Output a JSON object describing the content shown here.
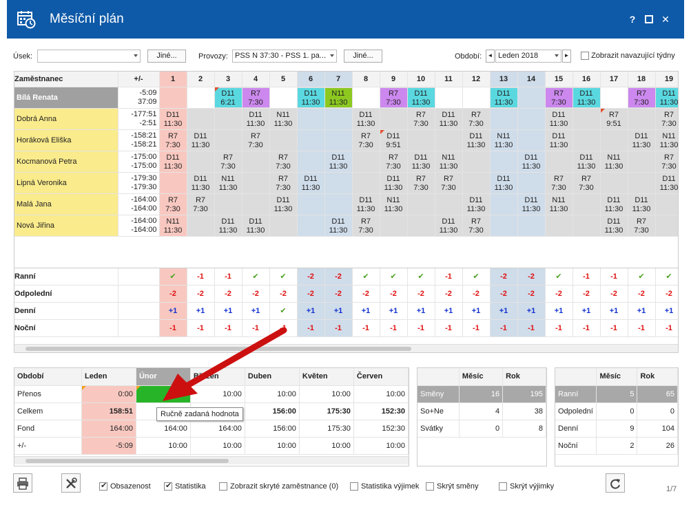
{
  "window": {
    "title": "Měsíční plán",
    "help": "?",
    "maximize": "□",
    "close": "✕",
    "icon": "calendar-clock-icon"
  },
  "filters": {
    "usek_label": "Úsek:",
    "usek_value": "",
    "jine1": "Jiné...",
    "provozy_label": "Provozy:",
    "provozy_value": "PSS N 37:30 - PSS 1. pa...",
    "jine2": "Jiné...",
    "obdobi_label": "Období:",
    "obdobi_value": "Leden 2018",
    "prev": "◄",
    "next": "►",
    "show_weeks": "Zobrazit navazující týdny"
  },
  "grid": {
    "col_name": "Zaměstnanec",
    "col_balance": "+/-",
    "days": [
      "1",
      "2",
      "3",
      "4",
      "5",
      "6",
      "7",
      "8",
      "9",
      "10",
      "11",
      "12",
      "13",
      "14",
      "15",
      "16",
      "17",
      "18",
      "19"
    ],
    "weekend_days": [
      6,
      7,
      13,
      14
    ],
    "today_day": 1,
    "employees": [
      {
        "name": "Bílá Renata",
        "bal1": "-5:09",
        "bal2": "37:09",
        "selected": true,
        "cells": [
          [
            "",
            ""
          ],
          [
            "",
            ""
          ],
          [
            "D11",
            "6:21"
          ],
          [
            "R7",
            "7:30"
          ],
          [
            "",
            ""
          ],
          [
            "D11",
            "11:30"
          ],
          [
            "N11",
            "11:30"
          ],
          [
            "",
            ""
          ],
          [
            "R7",
            "7:30"
          ],
          [
            "D11",
            "11:30"
          ],
          [
            "",
            ""
          ],
          [
            "",
            ""
          ],
          [
            "D11",
            "11:30"
          ],
          [
            "",
            ""
          ],
          [
            "R7",
            "7:30"
          ],
          [
            "D11",
            "11:30"
          ],
          [
            "",
            ""
          ],
          [
            "R7",
            "7:30"
          ],
          [
            "D11",
            "11:30"
          ]
        ],
        "flags": [
          3
        ]
      },
      {
        "name": "Dobrá Anna",
        "bal1": "-177:51",
        "bal2": "-2:51",
        "cells": [
          [
            "D11",
            "11:30"
          ],
          [
            "",
            ""
          ],
          [
            "",
            ""
          ],
          [
            "D11",
            "11:30"
          ],
          [
            "N11",
            "11:30"
          ],
          [
            "",
            ""
          ],
          [
            "",
            ""
          ],
          [
            "D11",
            "11:30"
          ],
          [
            "",
            ""
          ],
          [
            "R7",
            "7:30"
          ],
          [
            "D11",
            "11:30"
          ],
          [
            "R7",
            "7:30"
          ],
          [
            "",
            ""
          ],
          [
            "",
            ""
          ],
          [
            "D11",
            "11:30"
          ],
          [
            "",
            ""
          ],
          [
            "R7",
            "9:51"
          ],
          [
            "",
            ""
          ],
          [
            "R7",
            "7:30"
          ]
        ],
        "flags": [
          17
        ]
      },
      {
        "name": "Horáková Eliška",
        "bal1": "-158:21",
        "bal2": "-158:21",
        "cells": [
          [
            "R7",
            "7:30"
          ],
          [
            "D11",
            "11:30"
          ],
          [
            "",
            ""
          ],
          [
            "R7",
            "7:30"
          ],
          [
            "",
            ""
          ],
          [
            "",
            ""
          ],
          [
            "",
            ""
          ],
          [
            "R7",
            "7:30"
          ],
          [
            "D11",
            "9:51"
          ],
          [
            "",
            ""
          ],
          [
            "",
            ""
          ],
          [
            "D11",
            "11:30"
          ],
          [
            "N11",
            "11:30"
          ],
          [
            "",
            ""
          ],
          [
            "D11",
            "11:30"
          ],
          [
            "",
            ""
          ],
          [
            "",
            ""
          ],
          [
            "D11",
            "11:30"
          ],
          [
            "N11",
            "11:30"
          ]
        ],
        "flags": [
          9
        ]
      },
      {
        "name": "Kocmanová Petra",
        "bal1": "-175:00",
        "bal2": "-175:00",
        "cells": [
          [
            "D11",
            "11:30"
          ],
          [
            "",
            ""
          ],
          [
            "R7",
            "7:30"
          ],
          [
            "",
            ""
          ],
          [
            "R7",
            "7:30"
          ],
          [
            "",
            ""
          ],
          [
            "D11",
            "11:30"
          ],
          [
            "",
            ""
          ],
          [
            "R7",
            "7:30"
          ],
          [
            "D11",
            "11:30"
          ],
          [
            "N11",
            "11:30"
          ],
          [
            "",
            ""
          ],
          [
            "",
            ""
          ],
          [
            "D11",
            "11:30"
          ],
          [
            "",
            ""
          ],
          [
            "D11",
            "11:30"
          ],
          [
            "N11",
            "11:30"
          ],
          [
            "",
            ""
          ],
          [
            "R7",
            "7:30"
          ]
        ],
        "flags": []
      },
      {
        "name": "Lipná Veronika",
        "bal1": "-179:30",
        "bal2": "-179:30",
        "cells": [
          [
            "",
            ""
          ],
          [
            "D11",
            "11:30"
          ],
          [
            "N11",
            "11:30"
          ],
          [
            "",
            ""
          ],
          [
            "R7",
            "7:30"
          ],
          [
            "D11",
            "11:30"
          ],
          [
            "",
            ""
          ],
          [
            "",
            ""
          ],
          [
            "D11",
            "11:30"
          ],
          [
            "R7",
            "7:30"
          ],
          [
            "R7",
            "7:30"
          ],
          [
            "",
            ""
          ],
          [
            "D11",
            "11:30"
          ],
          [
            "",
            ""
          ],
          [
            "R7",
            "7:30"
          ],
          [
            "R7",
            "7:30"
          ],
          [
            "",
            ""
          ],
          [
            "",
            ""
          ],
          [
            "D11",
            "11:30"
          ]
        ],
        "flags": []
      },
      {
        "name": "Malá Jana",
        "bal1": "-164:00",
        "bal2": "-164:00",
        "cells": [
          [
            "R7",
            "7:30"
          ],
          [
            "R7",
            "7:30"
          ],
          [
            "",
            ""
          ],
          [
            "",
            ""
          ],
          [
            "D11",
            "11:30"
          ],
          [
            "",
            ""
          ],
          [
            "",
            ""
          ],
          [
            "D11",
            "11:30"
          ],
          [
            "N11",
            "11:30"
          ],
          [
            "",
            ""
          ],
          [
            "",
            ""
          ],
          [
            "D11",
            "11:30"
          ],
          [
            "",
            ""
          ],
          [
            "D11",
            "11:30"
          ],
          [
            "N11",
            "11:30"
          ],
          [
            "",
            ""
          ],
          [
            "D11",
            "11:30"
          ],
          [
            "D11",
            "11:30"
          ],
          [
            "",
            ""
          ]
        ],
        "flags": []
      },
      {
        "name": "Nová Jiřina",
        "bal1": "-164:00",
        "bal2": "-164:00",
        "cells": [
          [
            "N11",
            "11:30"
          ],
          [
            "",
            ""
          ],
          [
            "D11",
            "11:30"
          ],
          [
            "D11",
            "11:30"
          ],
          [
            "",
            ""
          ],
          [
            "",
            ""
          ],
          [
            "D11",
            "11:30"
          ],
          [
            "R7",
            "7:30"
          ],
          [
            "",
            ""
          ],
          [
            "",
            ""
          ],
          [
            "D11",
            "11:30"
          ],
          [
            "R7",
            "7:30"
          ],
          [
            "",
            ""
          ],
          [
            "",
            ""
          ],
          [
            "",
            ""
          ],
          [
            "",
            ""
          ],
          [
            "D11",
            "11:30"
          ],
          [
            "R7",
            "7:30"
          ],
          [
            "",
            ""
          ]
        ],
        "flags": []
      }
    ],
    "summary": [
      {
        "label": "Ranní",
        "values": [
          "✔",
          "-1",
          "-1",
          "✔",
          "✔",
          "-2",
          "-2",
          "✔",
          "✔",
          "✔",
          "-1",
          "✔",
          "-2",
          "-2",
          "✔",
          "-1",
          "-1",
          "✔",
          "✔"
        ]
      },
      {
        "label": "Odpolední",
        "values": [
          "-2",
          "-2",
          "-2",
          "-2",
          "-2",
          "-2",
          "-2",
          "-2",
          "-2",
          "-2",
          "-2",
          "-2",
          "-2",
          "-2",
          "-2",
          "-2",
          "-2",
          "-2",
          "-2"
        ]
      },
      {
        "label": "Denní",
        "values": [
          "+1",
          "+1",
          "+1",
          "+1",
          "✔",
          "+1",
          "+1",
          "+1",
          "+1",
          "+1",
          "+1",
          "+1",
          "+1",
          "+1",
          "+1",
          "+1",
          "+1",
          "+1",
          "+1"
        ]
      },
      {
        "label": "Noční",
        "values": [
          "-1",
          "-1",
          "-1",
          "-1",
          "-1",
          "-1",
          "-1",
          "-1",
          "-1",
          "-1",
          "-1",
          "-1",
          "-1",
          "-1",
          "-1",
          "-1",
          "-1",
          "-1",
          "-1"
        ]
      }
    ]
  },
  "periods": {
    "headers": [
      "Období",
      "Leden",
      "Únor",
      "Březen",
      "Duben",
      "Květen",
      "Červen"
    ],
    "rows": [
      {
        "label": "Přenos",
        "values": [
          "0:00",
          "",
          "10:00",
          "10:00",
          "10:00",
          "10:00"
        ]
      },
      {
        "label": "Celkem",
        "values": [
          "158:51",
          "",
          "",
          "156:00",
          "175:30",
          "152:30"
        ]
      },
      {
        "label": "Fond",
        "values": [
          "164:00",
          "164:00",
          "164:00",
          "156:00",
          "175:30",
          "152:30"
        ]
      },
      {
        "label": "+/-",
        "values": [
          "-5:09",
          "10:00",
          "10:00",
          "10:00",
          "10:00",
          "10:00"
        ]
      }
    ],
    "tooltip": "Ručně zadaná hodnota"
  },
  "stats1": {
    "headers": [
      "",
      "Měsíc",
      "Rok"
    ],
    "rows": [
      [
        "Směny",
        "16",
        "195"
      ],
      [
        "So+Ne",
        "4",
        "38"
      ],
      [
        "Svátky",
        "0",
        "8"
      ]
    ]
  },
  "stats2": {
    "headers": [
      "",
      "Měsíc",
      "Rok"
    ],
    "rows": [
      [
        "Ranní",
        "5",
        "65"
      ],
      [
        "Odpolední",
        "0",
        "0"
      ],
      [
        "Denní",
        "9",
        "104"
      ],
      [
        "Noční",
        "2",
        "26"
      ]
    ]
  },
  "bottom": {
    "print_icon": "printer-icon",
    "tools_icon": "tools-icon",
    "refresh_icon": "refresh-icon",
    "options": [
      {
        "label": "Obsazenost",
        "checked": true
      },
      {
        "label": "Statistika",
        "checked": true
      },
      {
        "label": "Zobrazit skryté zaměstnance (0)",
        "checked": false
      },
      {
        "label": "Statistika výjimek",
        "checked": false
      },
      {
        "label": "Skrýt směny",
        "checked": false
      },
      {
        "label": "Skrýt výjimky",
        "checked": false
      }
    ],
    "page": "1/7"
  },
  "colors": {
    "title_bar": "#0f5aa8",
    "name_col": "#faeb8c",
    "R7": "#cc88ee",
    "D11": "#5ad8e0",
    "N11": "#8cc820",
    "today": "#f8c8c0",
    "weekend": "#cfdcea",
    "manual_value": "#28b428",
    "arrow": "#cc1010"
  }
}
